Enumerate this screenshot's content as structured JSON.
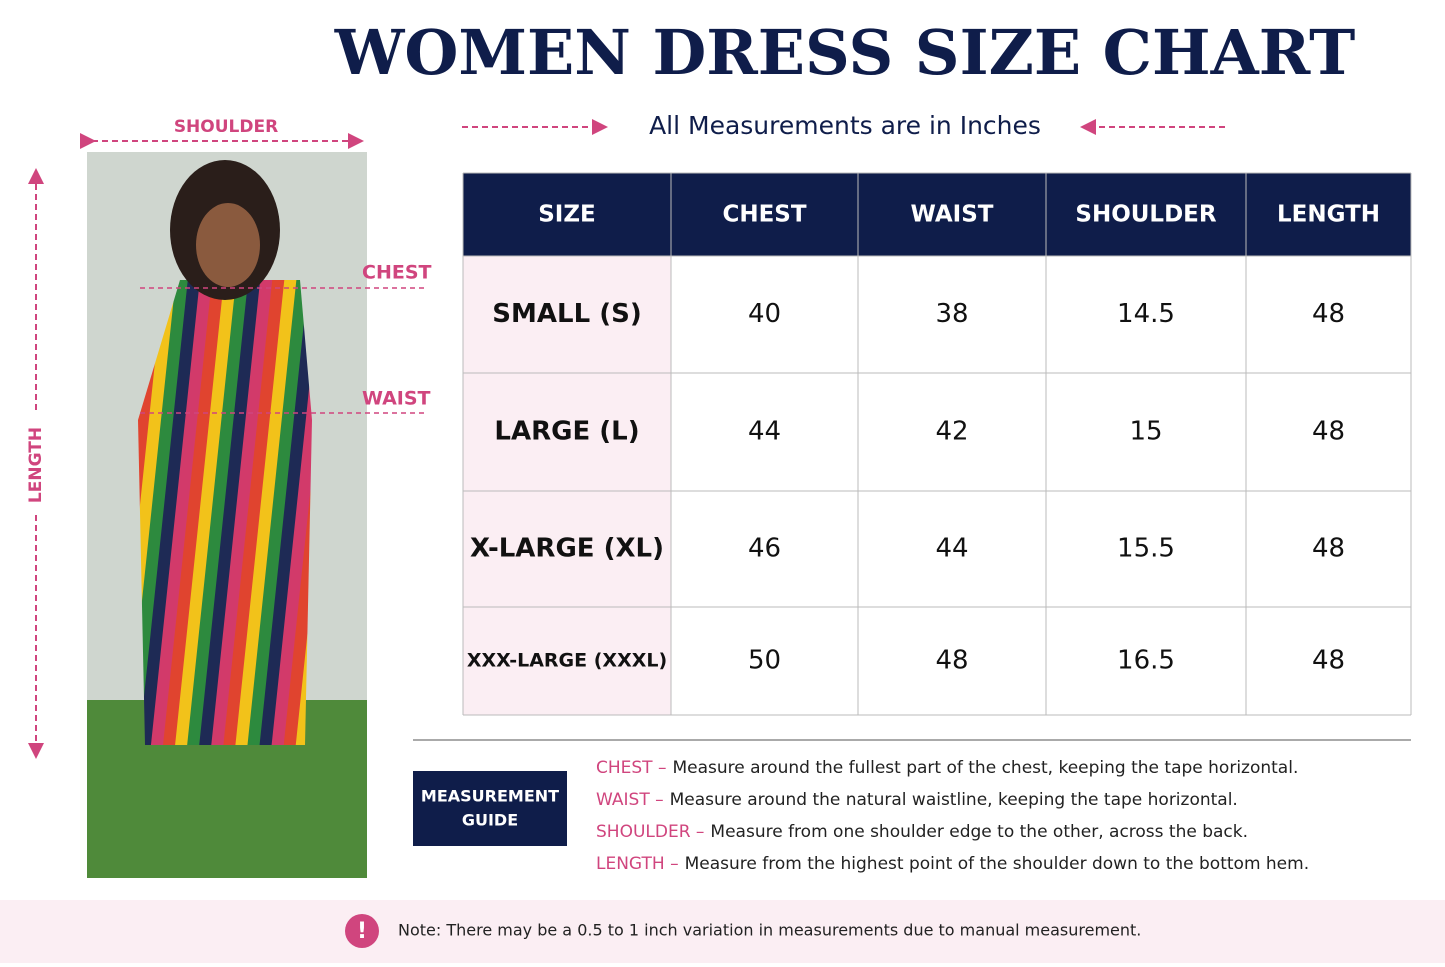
{
  "header": {
    "title": "WOMEN DRESS SIZE CHART",
    "subtitle": "All Measurements are in Inches"
  },
  "photo": {
    "shoulder": "SHOULDER",
    "chest": "CHEST",
    "waist": "WAIST",
    "length": "LENGTH"
  },
  "table": {
    "header": [
      "SIZE",
      "CHEST",
      "WAIST",
      "SHOULDER",
      "LENGTH"
    ],
    "rows": [
      [
        "SMALL (S)",
        40,
        38,
        14.5,
        48
      ],
      [
        "LARGE (L)",
        44,
        42,
        15,
        48
      ],
      [
        "X-LARGE (XL)",
        46,
        44,
        15.5,
        48
      ],
      [
        "XXX-LARGE (XXXL)",
        50,
        48,
        16.5,
        48
      ]
    ]
  },
  "guide": {
    "label": [
      "MEASUREMENT",
      "GUIDE"
    ],
    "items": [
      {
        "term": "CHEST –",
        "text": "Measure around the fullest part of the chest, keeping the tape horizontal."
      },
      {
        "term": "WAIST –",
        "text": "Measure around the natural waistline, keeping the tape horizontal."
      },
      {
        "term": "SHOULDER –",
        "text": "Measure from one shoulder edge to the other, across the back."
      },
      {
        "term": "LENGTH –",
        "text": "Measure from the highest point of the shoulder down to the bottom hem."
      }
    ]
  },
  "note": "Note: There may be a 0.5 to 1 inch variation in measurements due to manual measurement."
}
